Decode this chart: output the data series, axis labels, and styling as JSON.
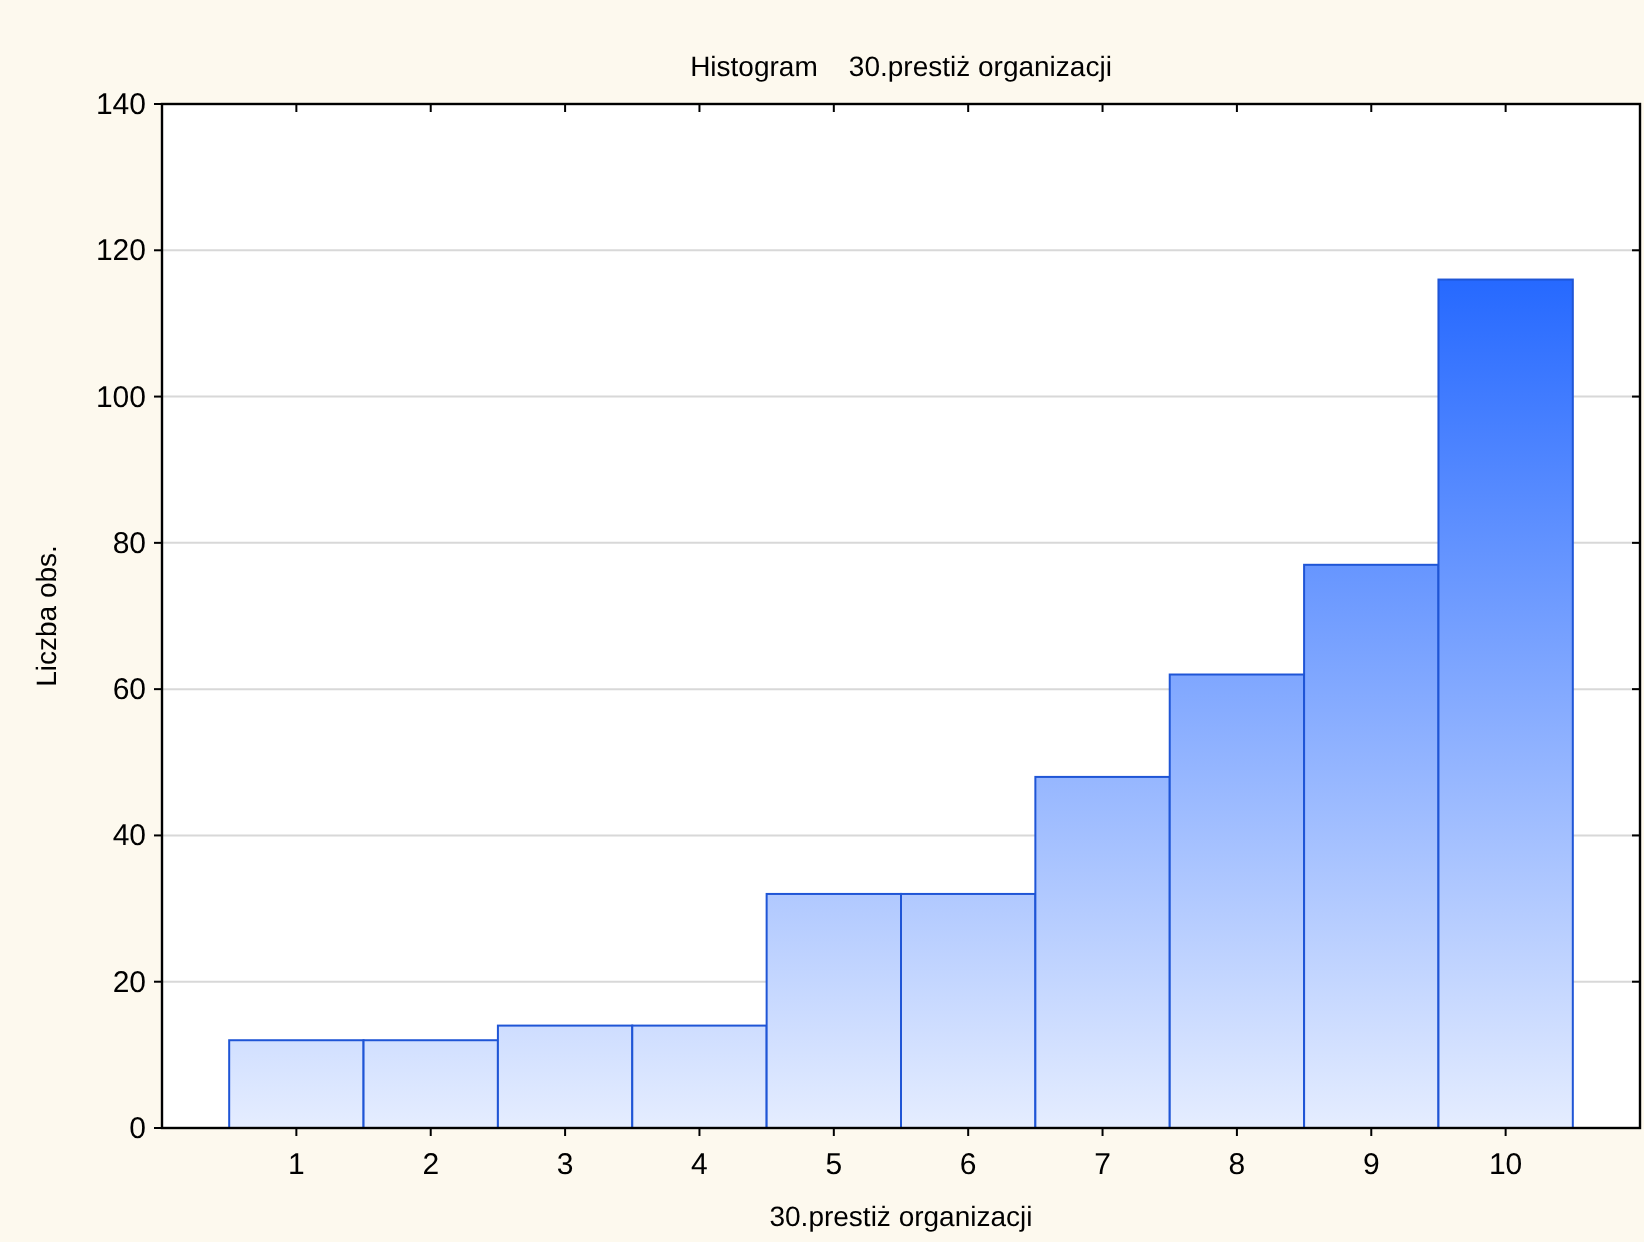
{
  "chart_data": {
    "type": "histogram",
    "title": "Histogram    30.prestiż organizacji",
    "xlabel": "30.prestiż organizacji",
    "ylabel": "Liczba obs.",
    "bins": [
      0.5,
      1.5,
      2.5,
      3.5,
      4.5,
      5.5,
      6.5,
      7.5,
      8.5,
      9.5,
      10.5
    ],
    "values": [
      12,
      12,
      14,
      14,
      32,
      32,
      48,
      62,
      77,
      116
    ],
    "color": "#1f55d6",
    "xlim": [
      0,
      11
    ],
    "xticks": [
      1,
      2,
      3,
      4,
      5,
      6,
      7,
      8,
      9,
      10
    ],
    "ylim": [
      0,
      140
    ],
    "yticks": [
      0,
      20,
      40,
      60,
      80,
      100,
      120,
      140
    ],
    "grid": "y"
  }
}
